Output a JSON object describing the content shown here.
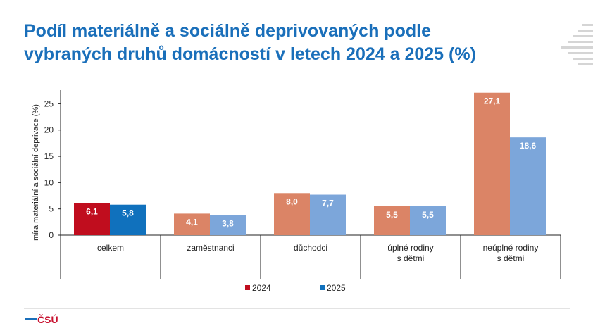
{
  "title": {
    "line1": "Podíl materiálně a sociálně deprivovaných podle",
    "line2": "vybraných druhů domácností v letech 2024 a 2025 (%)"
  },
  "colors": {
    "title": "#1a6fba",
    "legend_2024": "#c00d1e",
    "legend_2025": "#1071bd"
  },
  "chart_data": {
    "type": "bar",
    "title": "Podíl materiálně a sociálně deprivovaných podle vybraných druhů domácností v letech 2024 a 2025 (%)",
    "ylabel": "míra materiální a sociální deprivace (%)",
    "xlabel": "",
    "ylim": [
      0,
      27.6
    ],
    "yticks": [
      0,
      5,
      10,
      15,
      20,
      25
    ],
    "grid": false,
    "legend_position": "bottom",
    "categories": [
      [
        "celkem"
      ],
      [
        "zaměstnanci"
      ],
      [
        "důchodci"
      ],
      [
        "úplné rodiny",
        "s dětmi"
      ],
      [
        "neúplné rodiny",
        "s dětmi"
      ]
    ],
    "series": [
      {
        "name": "2024",
        "values": [
          6.1,
          4.1,
          8.0,
          5.5,
          27.1
        ],
        "labels": [
          "6,1",
          "4,1",
          "8,0",
          "5,5",
          "27,1"
        ],
        "colors": [
          "#c00d1e",
          "#db8466",
          "#db8466",
          "#db8466",
          "#db8466"
        ]
      },
      {
        "name": "2025",
        "values": [
          5.8,
          3.8,
          7.7,
          5.5,
          18.6
        ],
        "labels": [
          "5,8",
          "3,8",
          "7,7",
          "5,5",
          "18,6"
        ],
        "colors": [
          "#1071bd",
          "#7ca6da",
          "#7ca6da",
          "#7ca6da",
          "#7ca6da"
        ]
      }
    ]
  },
  "footer": {
    "logo_text": "ČSÚ"
  }
}
